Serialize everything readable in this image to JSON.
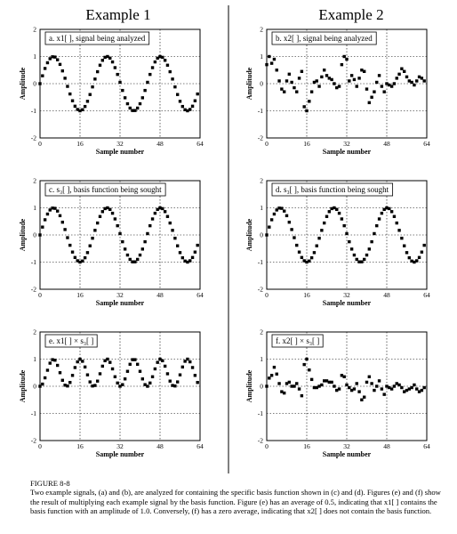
{
  "columns": [
    "Example 1",
    "Example 2"
  ],
  "chart_data": [
    {
      "type": "scatter",
      "panel": "a",
      "label": "a.  x1[ ], signal being analyzed",
      "xlabel": "Sample number",
      "ylabel": "Amplitude",
      "xlim": [
        0,
        64
      ],
      "ylim": [
        -2,
        2
      ],
      "xticks": [
        0,
        16,
        32,
        48,
        64
      ],
      "yticks": [
        2,
        1,
        0,
        -1,
        -2
      ],
      "grid": true,
      "x": [
        0,
        1,
        2,
        3,
        4,
        5,
        6,
        7,
        8,
        9,
        10,
        11,
        12,
        13,
        14,
        15,
        16,
        17,
        18,
        19,
        20,
        21,
        22,
        23,
        24,
        25,
        26,
        27,
        28,
        29,
        30,
        31,
        32,
        33,
        34,
        35,
        36,
        37,
        38,
        39,
        40,
        41,
        42,
        43,
        44,
        45,
        46,
        47,
        48,
        49,
        50,
        51,
        52,
        53,
        54,
        55,
        56,
        57,
        58,
        59,
        60,
        61,
        62,
        63
      ],
      "y": [
        0,
        0.29,
        0.56,
        0.77,
        0.92,
        0.99,
        0.98,
        0.88,
        0.71,
        0.47,
        0.2,
        -0.1,
        -0.38,
        -0.63,
        -0.83,
        -0.95,
        -1,
        -0.96,
        -0.84,
        -0.65,
        -0.4,
        -0.12,
        0.17,
        0.44,
        0.68,
        0.86,
        0.97,
        1,
        0.94,
        0.8,
        0.59,
        0.34,
        0.05,
        -0.25,
        -0.52,
        -0.74,
        -0.9,
        -0.99,
        -0.99,
        -0.9,
        -0.74,
        -0.52,
        -0.25,
        0.05,
        0.34,
        0.59,
        0.8,
        0.94,
        1,
        0.97,
        0.86,
        0.68,
        0.44,
        0.17,
        -0.12,
        -0.4,
        -0.65,
        -0.84,
        -0.96,
        -1,
        -0.95,
        -0.83,
        -0.63,
        -0.38
      ]
    },
    {
      "type": "scatter",
      "panel": "b",
      "label": "b.  x2[ ], signal being analyzed",
      "xlabel": "Sample number",
      "ylabel": "Amplitude",
      "xlim": [
        0,
        64
      ],
      "ylim": [
        -2,
        2
      ],
      "xticks": [
        0,
        16,
        32,
        48,
        64
      ],
      "yticks": [
        2,
        1,
        0,
        -1,
        -2
      ],
      "grid": true,
      "x": [
        0,
        1,
        2,
        3,
        4,
        5,
        6,
        7,
        8,
        9,
        10,
        11,
        12,
        13,
        14,
        15,
        16,
        17,
        18,
        19,
        20,
        21,
        22,
        23,
        24,
        25,
        26,
        27,
        28,
        29,
        30,
        31,
        32,
        33,
        34,
        35,
        36,
        37,
        38,
        39,
        40,
        41,
        42,
        43,
        44,
        45,
        46,
        47,
        48,
        49,
        50,
        51,
        52,
        53,
        54,
        55,
        56,
        57,
        58,
        59,
        60,
        61,
        62,
        63
      ],
      "y": [
        0.7,
        1,
        0.75,
        0.9,
        0.5,
        0.1,
        -0.2,
        -0.3,
        0.1,
        0.35,
        0.05,
        -0.15,
        -0.3,
        0.2,
        0.45,
        -0.85,
        -1,
        -0.65,
        -0.3,
        0.05,
        0.1,
        -0.1,
        0.25,
        0.5,
        0.3,
        0.2,
        0.15,
        0,
        -0.15,
        -0.1,
        0.7,
        1,
        0.9,
        0.1,
        0.3,
        0.15,
        -0.1,
        0.2,
        0.5,
        0.45,
        -0.2,
        -0.7,
        -0.5,
        -0.3,
        0.05,
        0.3,
        -0.1,
        -0.3,
        0,
        -0.05,
        -0.1,
        0,
        0.2,
        0.35,
        0.55,
        0.45,
        0.25,
        0.1,
        0.05,
        -0.05,
        0.1,
        0.25,
        0.2,
        0.1
      ]
    },
    {
      "type": "scatter",
      "panel": "c",
      "label": "c.  s₃[ ], basis function being sought",
      "xlabel": "Sample number",
      "ylabel": "Amplitude",
      "xlim": [
        0,
        64
      ],
      "ylim": [
        -2,
        2
      ],
      "xticks": [
        0,
        16,
        32,
        48,
        64
      ],
      "yticks": [
        2,
        1,
        0,
        -1,
        -2
      ],
      "grid": true,
      "x": [
        0,
        1,
        2,
        3,
        4,
        5,
        6,
        7,
        8,
        9,
        10,
        11,
        12,
        13,
        14,
        15,
        16,
        17,
        18,
        19,
        20,
        21,
        22,
        23,
        24,
        25,
        26,
        27,
        28,
        29,
        30,
        31,
        32,
        33,
        34,
        35,
        36,
        37,
        38,
        39,
        40,
        41,
        42,
        43,
        44,
        45,
        46,
        47,
        48,
        49,
        50,
        51,
        52,
        53,
        54,
        55,
        56,
        57,
        58,
        59,
        60,
        61,
        62,
        63
      ],
      "y": [
        0,
        0.29,
        0.56,
        0.77,
        0.92,
        0.99,
        0.98,
        0.88,
        0.71,
        0.47,
        0.2,
        -0.1,
        -0.38,
        -0.63,
        -0.83,
        -0.95,
        -1,
        -0.96,
        -0.84,
        -0.65,
        -0.4,
        -0.12,
        0.17,
        0.44,
        0.68,
        0.86,
        0.97,
        1,
        0.94,
        0.8,
        0.59,
        0.34,
        0.05,
        -0.25,
        -0.52,
        -0.74,
        -0.9,
        -0.99,
        -0.99,
        -0.9,
        -0.74,
        -0.52,
        -0.25,
        0.05,
        0.34,
        0.59,
        0.8,
        0.94,
        1,
        0.97,
        0.86,
        0.68,
        0.44,
        0.17,
        -0.12,
        -0.4,
        -0.65,
        -0.84,
        -0.96,
        -1,
        -0.95,
        -0.83,
        -0.63,
        -0.38
      ]
    },
    {
      "type": "scatter",
      "panel": "d",
      "label": "d.  s₃[ ], basis function being sought",
      "xlabel": "Sample number",
      "ylabel": "Amplitude",
      "xlim": [
        0,
        64
      ],
      "ylim": [
        -2,
        2
      ],
      "xticks": [
        0,
        16,
        32,
        48,
        64
      ],
      "yticks": [
        2,
        1,
        0,
        -1,
        -2
      ],
      "grid": true,
      "x": [
        0,
        1,
        2,
        3,
        4,
        5,
        6,
        7,
        8,
        9,
        10,
        11,
        12,
        13,
        14,
        15,
        16,
        17,
        18,
        19,
        20,
        21,
        22,
        23,
        24,
        25,
        26,
        27,
        28,
        29,
        30,
        31,
        32,
        33,
        34,
        35,
        36,
        37,
        38,
        39,
        40,
        41,
        42,
        43,
        44,
        45,
        46,
        47,
        48,
        49,
        50,
        51,
        52,
        53,
        54,
        55,
        56,
        57,
        58,
        59,
        60,
        61,
        62,
        63
      ],
      "y": [
        0,
        0.29,
        0.56,
        0.77,
        0.92,
        0.99,
        0.98,
        0.88,
        0.71,
        0.47,
        0.2,
        -0.1,
        -0.38,
        -0.63,
        -0.83,
        -0.95,
        -1,
        -0.96,
        -0.84,
        -0.65,
        -0.4,
        -0.12,
        0.17,
        0.44,
        0.68,
        0.86,
        0.97,
        1,
        0.94,
        0.8,
        0.59,
        0.34,
        0.05,
        -0.25,
        -0.52,
        -0.74,
        -0.9,
        -0.99,
        -0.99,
        -0.9,
        -0.74,
        -0.52,
        -0.25,
        0.05,
        0.34,
        0.59,
        0.8,
        0.94,
        1,
        0.97,
        0.86,
        0.68,
        0.44,
        0.17,
        -0.12,
        -0.4,
        -0.65,
        -0.84,
        -0.96,
        -1,
        -0.95,
        -0.83,
        -0.63,
        -0.38
      ]
    },
    {
      "type": "scatter",
      "panel": "e",
      "label": "e.  x1[ ] × s₃[ ]",
      "xlabel": "Sample number",
      "ylabel": "Amplitude",
      "xlim": [
        0,
        64
      ],
      "ylim": [
        -2,
        2
      ],
      "xticks": [
        0,
        16,
        32,
        48,
        64
      ],
      "yticks": [
        2,
        1,
        0,
        -1,
        -2
      ],
      "grid": true,
      "x": [
        0,
        1,
        2,
        3,
        4,
        5,
        6,
        7,
        8,
        9,
        10,
        11,
        12,
        13,
        14,
        15,
        16,
        17,
        18,
        19,
        20,
        21,
        22,
        23,
        24,
        25,
        26,
        27,
        28,
        29,
        30,
        31,
        32,
        33,
        34,
        35,
        36,
        37,
        38,
        39,
        40,
        41,
        42,
        43,
        44,
        45,
        46,
        47,
        48,
        49,
        50,
        51,
        52,
        53,
        54,
        55,
        56,
        57,
        58,
        59,
        60,
        61,
        62,
        63
      ],
      "y": [
        0,
        0.08,
        0.31,
        0.59,
        0.85,
        0.98,
        0.96,
        0.77,
        0.5,
        0.22,
        0.04,
        0.01,
        0.14,
        0.4,
        0.69,
        0.9,
        1,
        0.92,
        0.71,
        0.42,
        0.16,
        0.01,
        0.03,
        0.19,
        0.46,
        0.74,
        0.94,
        1,
        0.88,
        0.64,
        0.35,
        0.12,
        0,
        0.06,
        0.27,
        0.55,
        0.81,
        0.98,
        0.98,
        0.81,
        0.55,
        0.27,
        0.06,
        0,
        0.12,
        0.35,
        0.64,
        0.88,
        1,
        0.94,
        0.74,
        0.46,
        0.19,
        0.03,
        0.01,
        0.16,
        0.42,
        0.71,
        0.92,
        1,
        0.9,
        0.69,
        0.4,
        0.14
      ]
    },
    {
      "type": "scatter",
      "panel": "f",
      "label": "f.  x2[ ] × s₃[ ]",
      "xlabel": "Sample number",
      "ylabel": "Amplitude",
      "xlim": [
        0,
        64
      ],
      "ylim": [
        -2,
        2
      ],
      "xticks": [
        0,
        16,
        32,
        48,
        64
      ],
      "yticks": [
        2,
        1,
        0,
        -1,
        -2
      ],
      "grid": true,
      "x": [
        0,
        1,
        2,
        3,
        4,
        5,
        6,
        7,
        8,
        9,
        10,
        11,
        12,
        13,
        14,
        15,
        16,
        17,
        18,
        19,
        20,
        21,
        22,
        23,
        24,
        25,
        26,
        27,
        28,
        29,
        30,
        31,
        32,
        33,
        34,
        35,
        36,
        37,
        38,
        39,
        40,
        41,
        42,
        43,
        44,
        45,
        46,
        47,
        48,
        49,
        50,
        51,
        52,
        53,
        54,
        55,
        56,
        57,
        58,
        59,
        60,
        61,
        62,
        63
      ],
      "y": [
        0,
        0.3,
        0.4,
        0.7,
        0.45,
        0.1,
        -0.2,
        -0.25,
        0.1,
        0.15,
        0,
        0,
        0.1,
        -0.1,
        -0.35,
        0.8,
        1,
        0.6,
        0.25,
        -0.05,
        -0.05,
        0,
        0.05,
        0.2,
        0.2,
        0.15,
        0.15,
        0,
        -0.15,
        -0.1,
        0.4,
        0.35,
        0.05,
        -0.05,
        -0.15,
        -0.1,
        0.1,
        -0.2,
        -0.5,
        -0.4,
        0.15,
        0.35,
        0.1,
        -0.15,
        0,
        0.2,
        -0.1,
        -0.3,
        0,
        -0.05,
        -0.1,
        0,
        0.1,
        0.05,
        -0.05,
        -0.2,
        -0.15,
        -0.1,
        -0.05,
        0.05,
        -0.1,
        -0.2,
        -0.15,
        -0.05
      ]
    }
  ],
  "caption": {
    "title": "FIGURE 8-8",
    "text": "Two example signals, (a) and (b), are analyzed for containing the specific basis function shown in (c) and (d). Figures (e) and (f) show the result of multiplying each example signal by the basis function. Figure (e) has an average of 0.5, indicating that x1[ ] contains the basis function with an amplitude of 1.0. Conversely, (f) has a zero average, indicating that x2[ ] does not contain the basis function."
  }
}
